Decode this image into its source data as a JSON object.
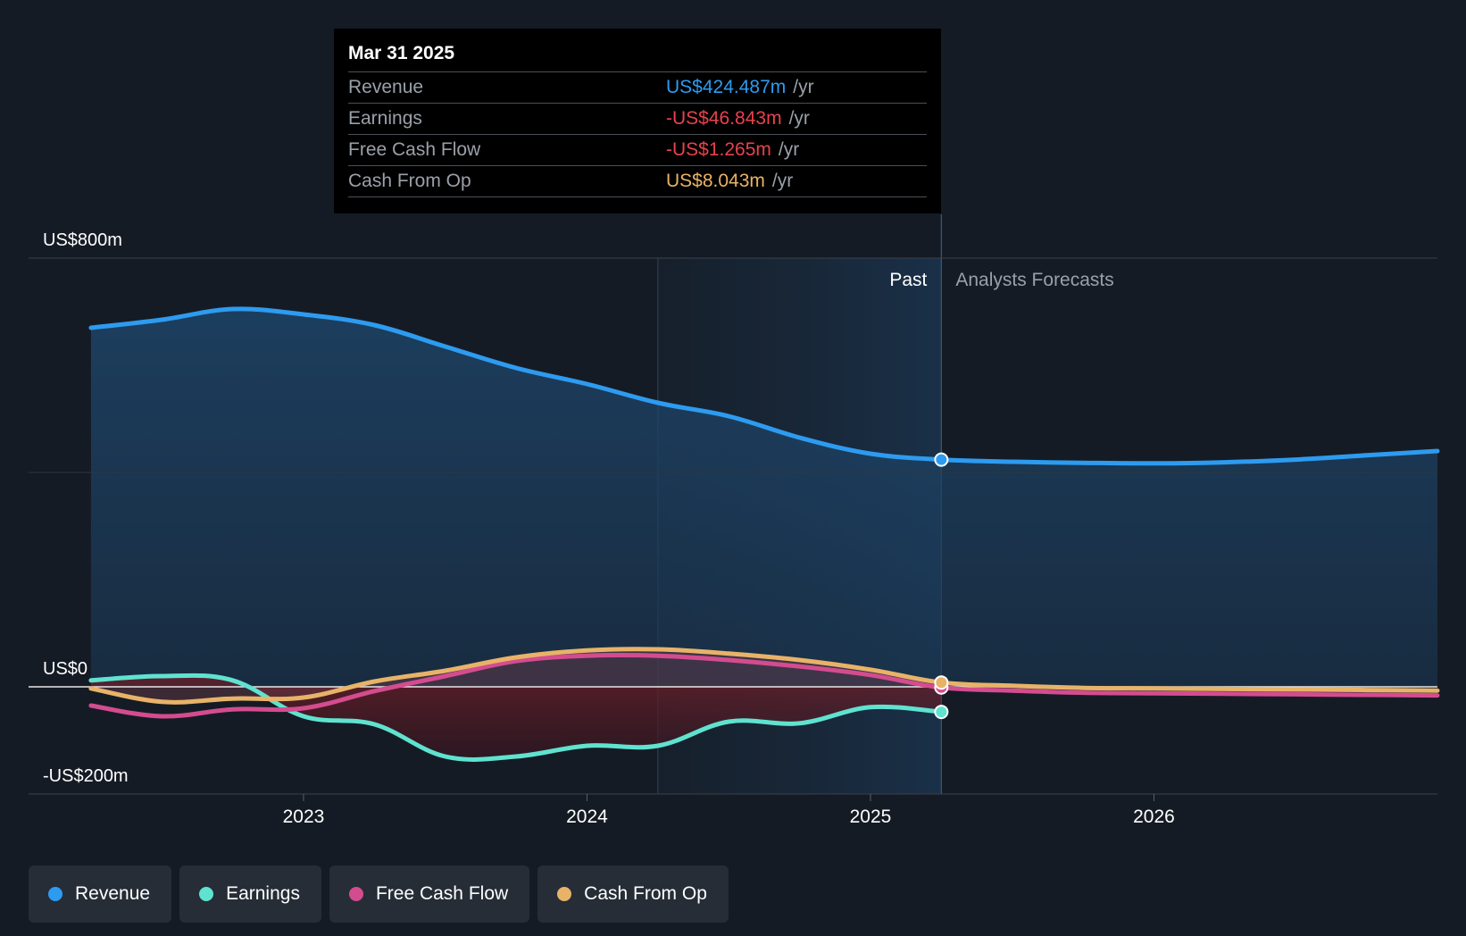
{
  "tooltip": {
    "date": "Mar 31 2025",
    "rows": [
      {
        "label": "Revenue",
        "value": "US$424.487m",
        "unit": "/yr",
        "color": "#2d9bf0"
      },
      {
        "label": "Earnings",
        "value": "-US$46.843m",
        "unit": "/yr",
        "color": "#e8424c"
      },
      {
        "label": "Free Cash Flow",
        "value": "-US$1.265m",
        "unit": "/yr",
        "color": "#e8424c"
      },
      {
        "label": "Cash From Op",
        "value": "US$8.043m",
        "unit": "/yr",
        "color": "#e8b368"
      }
    ]
  },
  "legend": [
    {
      "label": "Revenue",
      "color": "#2d9bf0"
    },
    {
      "label": "Earnings",
      "color": "#5fe3d0"
    },
    {
      "label": "Free Cash Flow",
      "color": "#d44c8f"
    },
    {
      "label": "Cash From Op",
      "color": "#e8b368"
    }
  ],
  "chart_data": {
    "type": "line",
    "ylim": [
      -200,
      800
    ],
    "y_tick_labels": [
      "US$800m",
      "US$0",
      "-US$200m"
    ],
    "y_ticks": [
      800,
      0,
      -200
    ],
    "x_tick_labels": [
      "2023",
      "2024",
      "2025",
      "2026"
    ],
    "x_ticks": [
      2023.0,
      2024.0,
      2025.0,
      2026.0
    ],
    "xlim": [
      2022.03,
      2027.0
    ],
    "past_label": "Past",
    "forecast_label": "Analysts Forecasts",
    "past_end": 2025.25,
    "highlight_start": 2024.25,
    "series": [
      {
        "name": "Revenue",
        "color": "#2d9bf0",
        "x": [
          2022.25,
          2022.5,
          2022.75,
          2023.0,
          2023.25,
          2023.5,
          2023.75,
          2024.0,
          2024.25,
          2024.5,
          2024.75,
          2025.0,
          2025.25,
          2025.5,
          2025.75,
          2026.0,
          2026.25,
          2026.5,
          2026.75,
          2027.0
        ],
        "y": [
          670,
          685,
          705,
          695,
          675,
          635,
          595,
          565,
          530,
          505,
          465,
          435,
          424,
          420,
          418,
          417,
          419,
          424,
          432,
          440
        ]
      },
      {
        "name": "Earnings",
        "color": "#5fe3d0",
        "x": [
          2022.25,
          2022.5,
          2022.75,
          2023.0,
          2023.25,
          2023.5,
          2023.75,
          2024.0,
          2024.25,
          2024.5,
          2024.75,
          2025.0,
          2025.25
        ],
        "y": [
          12,
          20,
          12,
          -55,
          -70,
          -130,
          -130,
          -110,
          -110,
          -65,
          -68,
          -38,
          -46.8
        ]
      },
      {
        "name": "Free Cash Flow",
        "color": "#d44c8f",
        "x": [
          2022.25,
          2022.5,
          2022.75,
          2023.0,
          2023.25,
          2023.5,
          2023.75,
          2024.0,
          2024.25,
          2024.5,
          2024.75,
          2025.0,
          2025.25,
          2025.5,
          2025.75,
          2026.0,
          2026.25,
          2026.5,
          2026.75,
          2027.0
        ],
        "y": [
          -35,
          -55,
          -42,
          -40,
          -8,
          20,
          48,
          58,
          58,
          50,
          38,
          22,
          -1.3,
          -7,
          -11,
          -12,
          -13,
          -14,
          -15,
          -16
        ]
      },
      {
        "name": "Cash From Op",
        "color": "#e8b368",
        "x": [
          2022.25,
          2022.5,
          2022.75,
          2023.0,
          2023.25,
          2023.5,
          2023.75,
          2024.0,
          2024.25,
          2024.5,
          2024.75,
          2025.0,
          2025.25,
          2025.5,
          2025.75,
          2026.0,
          2026.25,
          2026.5,
          2026.75,
          2027.0
        ],
        "y": [
          -3,
          -28,
          -22,
          -20,
          10,
          30,
          55,
          68,
          70,
          62,
          50,
          32,
          8.0,
          2,
          -2,
          -3,
          -4,
          -5,
          -6,
          -7
        ]
      }
    ]
  }
}
